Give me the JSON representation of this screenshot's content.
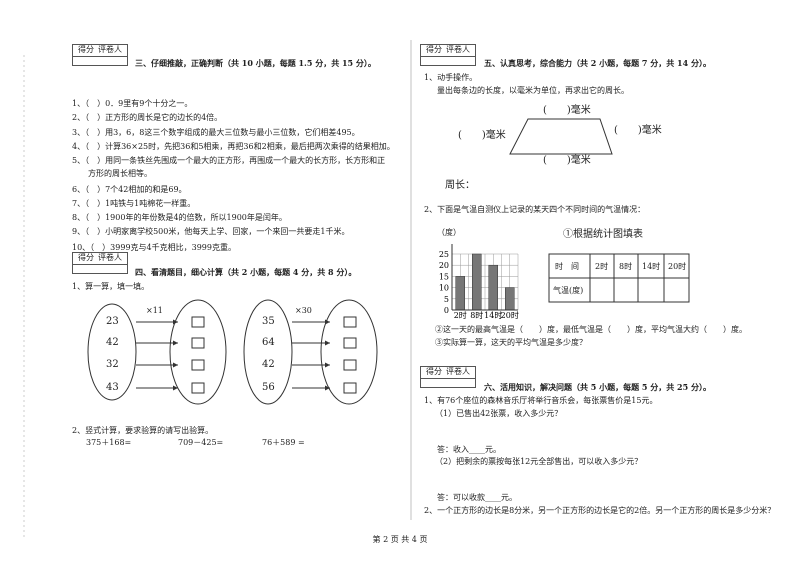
{
  "section3": {
    "score_label": "得分",
    "grader_label": "评卷人",
    "title": "三、仔细推敲，正确判断（共 10 小题，每题 1.5 分，共 15 分）。",
    "items": [
      "1、（　）0．9里有9个十分之一。",
      "2、（　）正方形的周长是它的边长的4倍。",
      "3、（　）用3，6，8这三个数字组成的最大三位数与最小三位数，它们相差495。",
      "4、（　）计算36×25时，先把36和5相乘，再把36和2相乘，最后把两次乘得的结果相加。",
      "5、（　）用同一条铁丝先围成一个最大的正方形，再围成一个最大的长方形，长方形和正",
      "方形的周长相等。",
      "6、（　）7个42相加的和是69。",
      "7、（　）1吨铁与1吨棉花一样重。",
      "8、（　）1900年的年份数是4的倍数，所以1900年是闰年。",
      "9、（　）小明家离学校500米，他每天上学、回家，一个来回一共要走1千米。",
      "10、（　）3999克与4千克相比，3999克重。"
    ]
  },
  "section4": {
    "score_label": "得分",
    "grader_label": "评卷人",
    "title": "四、看清题目，细心计算（共 2 小题，每题 4 分，共 8 分）。",
    "q1": "1、算一算，填一填。",
    "group1": {
      "op": "×11",
      "numbers": [
        "23",
        "42",
        "32",
        "43"
      ]
    },
    "group2": {
      "op": "×30",
      "numbers": [
        "35",
        "64",
        "42",
        "56"
      ]
    },
    "q2": "2、竖式计算，要求验算的请写出验算。",
    "calcs": [
      "375＋168=",
      "709－425=",
      "76＋589 ="
    ]
  },
  "section5": {
    "score_label": "得分",
    "grader_label": "评卷人",
    "title": "五、认真思考，综合能力（共 2 小题，每题 7 分，共 14 分）。",
    "q1": "1、动手操作。",
    "q1_text": "量出每条边的长度，以毫米为单位，再求出它的周长。",
    "edge_labels": [
      "(　　)毫米",
      "(　　)毫米",
      "(　　)毫米",
      "(　　)毫米"
    ],
    "perimeter": "周长：",
    "q2": "2、下面是气温自测仪上记录的某天四个不同时间的气温情况：",
    "chart": {
      "y_label": "（度）",
      "categories": [
        "2时",
        "8时",
        "14时",
        "20时"
      ],
      "values": [
        15,
        25,
        20,
        10
      ],
      "ylim": [
        0,
        25
      ],
      "yticks": [
        0,
        5,
        10,
        15,
        20,
        25
      ],
      "color": "#777777"
    },
    "table_title": "①根据统计图填表",
    "table": {
      "header": [
        "时　间",
        "2时",
        "8时",
        "14时",
        "20时"
      ],
      "row_label": "气温(度)"
    },
    "q2_2": "②这一天的最高气温是（　　）度，最低气温是（　　）度，平均气温大约（　　）度。",
    "q2_3": "③实际算一算，这天的平均气温是多少度？"
  },
  "section6": {
    "score_label": "得分",
    "grader_label": "评卷人",
    "title": "六、活用知识，解决问题（共 5 小题，每题 5 分，共 25 分）。",
    "q1": "1、有76个座位的森林音乐厅将举行音乐会，每张票售价是15元。",
    "q1_1": "（1）已售出42张票，收入多少元？",
    "a1": "答：收入____元。",
    "q1_2": "（2）把剩余的票按每张12元全部售出，可以收入多少元？",
    "a2": "答：可以收款____元。",
    "q2": "2、一个正方形的边长是8分米，另一个正方形的边长是它的2倍。另一个正方形的周长是多少分米？"
  },
  "footer": "第 2 页 共 4 页"
}
